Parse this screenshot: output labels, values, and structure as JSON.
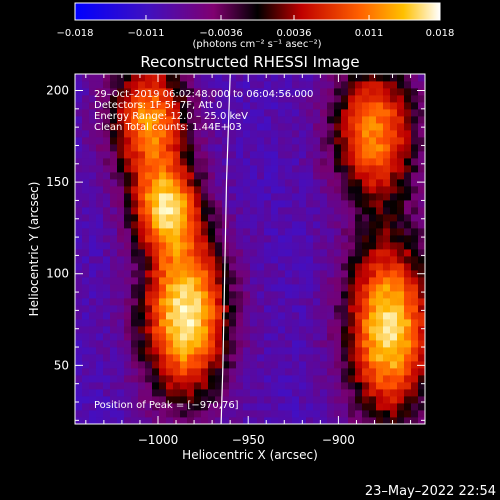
{
  "colorbar": {
    "tick_labels": [
      "−0.018",
      "−0.011",
      "−0.0036",
      "0.0036",
      "0.011",
      "0.018"
    ],
    "tick_values": [
      -0.018,
      -0.011,
      -0.0036,
      0.0036,
      0.011,
      0.018
    ],
    "range": [
      -0.018,
      0.018
    ],
    "units_label": "(photons cm⁻² s⁻¹ asec⁻²)",
    "colormap": "blue-purple-red-yellow-white"
  },
  "chart_data": {
    "type": "heatmap",
    "title": "Reconstructed RHESSI Image",
    "xlabel": "Heliocentric X (arcsec)",
    "ylabel": "Heliocentric Y (arcsec)",
    "xlim": [
      -1046,
      -852
    ],
    "ylim": [
      18,
      209
    ],
    "x_ticks": [
      -1000,
      -950,
      -900
    ],
    "x_tick_labels": [
      "−1000",
      "−950",
      "−900"
    ],
    "y_ticks": [
      50,
      100,
      150,
      200
    ],
    "y_tick_labels": [
      "50",
      "100",
      "150",
      "200"
    ],
    "grid": false,
    "annotations": [
      "29–Oct–2019 06:02:48.000 to 06:04:56.000",
      "Detectors: 1F 5F 7F, Att 0",
      "Energy Range: 12.0 – 25.0 keV",
      "Clean    Total counts: 1.44E+03"
    ],
    "peak_label": "Position of Peak = [−970,76]",
    "peak": [
      -970,
      76
    ],
    "limb_curve": [
      [
        -960,
        209
      ],
      [
        -962,
        150
      ],
      [
        -963,
        100
      ],
      [
        -964,
        50
      ],
      [
        -965,
        18
      ]
    ],
    "emission_regions": [
      {
        "name": "left-upper",
        "center": [
          -1005,
          185
        ],
        "sigma": [
          16,
          24
        ],
        "amp": 0.011
      },
      {
        "name": "left-mid",
        "center": [
          -996,
          137
        ],
        "sigma": [
          13,
          17
        ],
        "amp": 0.01
      },
      {
        "name": "left-lower",
        "center": [
          -985,
          78
        ],
        "sigma": [
          17,
          33
        ],
        "amp": 0.017
      },
      {
        "name": "right-upper",
        "center": [
          -880,
          178
        ],
        "sigma": [
          17,
          27
        ],
        "amp": 0.011
      },
      {
        "name": "right-lower",
        "center": [
          -872,
          70
        ],
        "sigma": [
          17,
          35
        ],
        "amp": 0.016
      }
    ],
    "background_level": -0.009
  },
  "footer": {
    "date": "23–May–2022 22:54"
  }
}
